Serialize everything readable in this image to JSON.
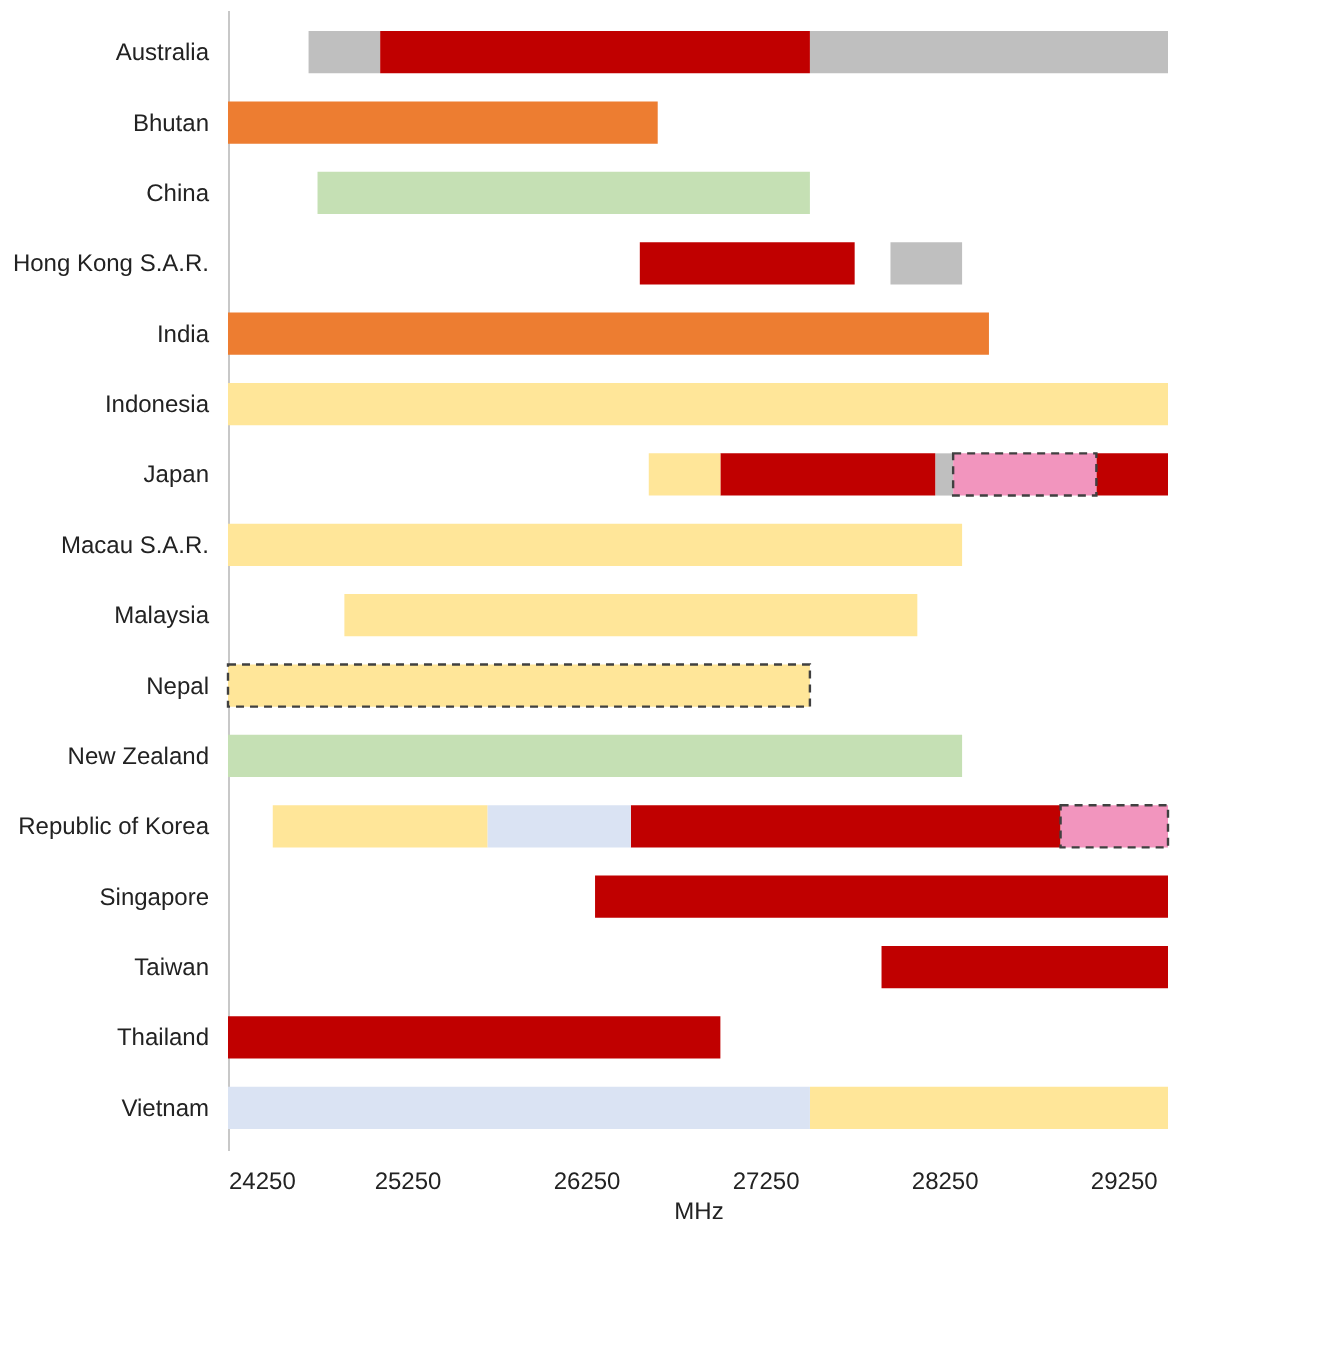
{
  "chart_data": {
    "type": "bar",
    "orientation": "horizontal",
    "xlabel": "MHz",
    "xlim": [
      24250,
      29500
    ],
    "xticks": [
      24250,
      25250,
      26250,
      27250,
      28250,
      29250
    ],
    "grid": false,
    "legend": false,
    "categories": [
      "Australia",
      "Bhutan",
      "China",
      "Hong Kong S.A.R.",
      "India",
      "Indonesia",
      "Japan",
      "Macau S.A.R.",
      "Malaysia",
      "Nepal",
      "New Zealand",
      "Republic of Korea",
      "Singapore",
      "Taiwan",
      "Thailand",
      "Vietnam"
    ],
    "series": [
      {
        "color": "#bfbfbf",
        "base": [
          24700,
          null,
          null,
          27950,
          null,
          null,
          28200,
          null,
          null,
          null,
          null,
          null,
          null,
          null,
          null,
          null
        ],
        "values": [
          400,
          null,
          null,
          400,
          null,
          null,
          100,
          null,
          null,
          null,
          null,
          null,
          null,
          null,
          null,
          null
        ]
      },
      {
        "color": "#bfbfbf",
        "base": [
          27500,
          null,
          null,
          null,
          null,
          null,
          null,
          null,
          null,
          null,
          null,
          null,
          null,
          null,
          null,
          null
        ],
        "values": [
          2000,
          null,
          null,
          null,
          null,
          null,
          null,
          null,
          null,
          null,
          null,
          null,
          null,
          null,
          null,
          null
        ]
      },
      {
        "color": "#c00000",
        "base": [
          25100,
          null,
          null,
          26550,
          null,
          null,
          27000,
          null,
          null,
          null,
          null,
          26500,
          26300,
          27900,
          24250,
          null
        ],
        "values": [
          2400,
          null,
          null,
          1200,
          null,
          null,
          1200,
          null,
          null,
          null,
          null,
          2400,
          3200,
          1600,
          2750,
          null
        ]
      },
      {
        "color": "#c00000",
        "base": [
          null,
          null,
          null,
          null,
          null,
          null,
          29100,
          null,
          null,
          null,
          null,
          null,
          null,
          null,
          null,
          null
        ],
        "values": [
          null,
          null,
          null,
          null,
          null,
          null,
          400,
          null,
          null,
          null,
          null,
          null,
          null,
          null,
          null,
          null
        ]
      },
      {
        "color": "#ed7d31",
        "base": [
          null,
          24250,
          null,
          null,
          24250,
          null,
          null,
          null,
          null,
          null,
          null,
          null,
          null,
          null,
          null,
          null
        ],
        "values": [
          null,
          2400,
          null,
          null,
          4250,
          null,
          null,
          null,
          null,
          null,
          null,
          null,
          null,
          null,
          null,
          null
        ]
      },
      {
        "color": "#c5e0b4",
        "base": [
          null,
          null,
          24750,
          null,
          null,
          null,
          null,
          null,
          null,
          null,
          24250,
          null,
          null,
          null,
          null,
          null
        ],
        "values": [
          null,
          null,
          2750,
          null,
          null,
          null,
          null,
          null,
          null,
          null,
          4100,
          null,
          null,
          null,
          null,
          null
        ]
      },
      {
        "color": "#ffe699",
        "base": [
          null,
          null,
          null,
          null,
          null,
          24250,
          26600,
          24250,
          24900,
          null,
          null,
          24500,
          null,
          null,
          null,
          27500
        ],
        "values": [
          null,
          null,
          null,
          null,
          null,
          5250,
          400,
          4100,
          3200,
          null,
          null,
          1200,
          null,
          null,
          null,
          2000
        ]
      },
      {
        "color": "#dae3f3",
        "base": [
          null,
          null,
          null,
          null,
          null,
          null,
          null,
          null,
          null,
          null,
          null,
          25700,
          null,
          null,
          null,
          24250
        ],
        "values": [
          null,
          null,
          null,
          null,
          null,
          null,
          null,
          null,
          null,
          null,
          null,
          800,
          null,
          null,
          null,
          3250
        ]
      },
      {
        "color": "#f295be",
        "line_style": "dashed",
        "base": [
          null,
          null,
          null,
          null,
          null,
          null,
          28300,
          null,
          null,
          null,
          null,
          28900,
          null,
          null,
          null,
          null
        ],
        "values": [
          null,
          null,
          null,
          null,
          null,
          null,
          800,
          null,
          null,
          null,
          null,
          600,
          null,
          null,
          null,
          null
        ]
      },
      {
        "color": "#ffe699",
        "line_style": "dashed",
        "base": [
          null,
          null,
          null,
          null,
          null,
          null,
          null,
          null,
          null,
          24250,
          null,
          null,
          null,
          null,
          null,
          null
        ],
        "values": [
          null,
          null,
          null,
          null,
          null,
          null,
          null,
          null,
          null,
          3250,
          null,
          null,
          null,
          null,
          null,
          null
        ]
      }
    ]
  }
}
